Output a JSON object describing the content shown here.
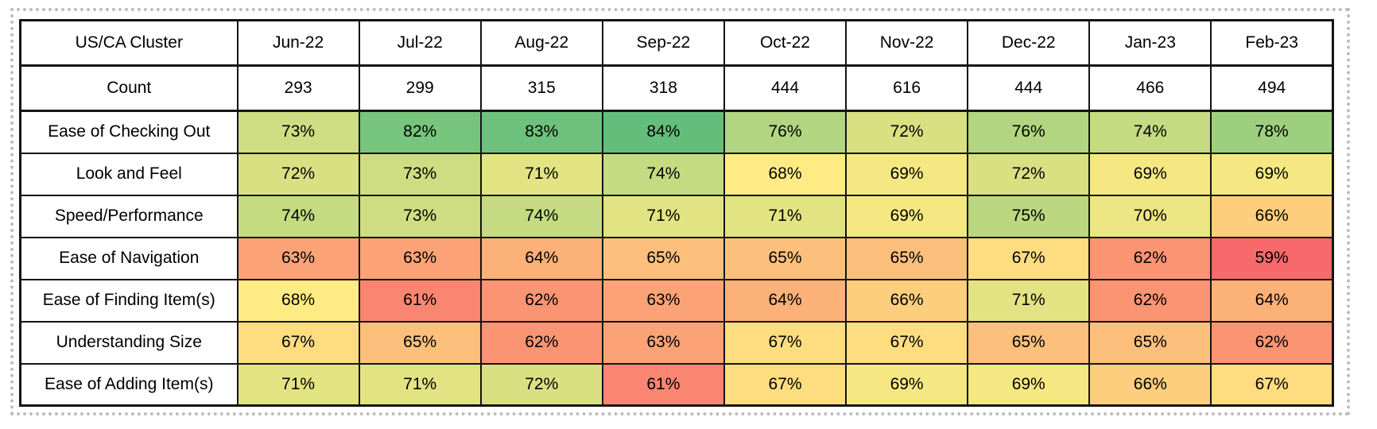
{
  "frame": {
    "border_color": "#bdbdbd",
    "background": "#ffffff"
  },
  "chart_data": {
    "type": "heatmap",
    "title": "US/CA Cluster",
    "corner_label": "US/CA Cluster",
    "columns": [
      "Jun-22",
      "Jul-22",
      "Aug-22",
      "Sep-22",
      "Oct-22",
      "Nov-22",
      "Dec-22",
      "Jan-23",
      "Feb-23"
    ],
    "count_row": {
      "label": "Count",
      "values": [
        293,
        299,
        315,
        318,
        444,
        616,
        444,
        466,
        494
      ]
    },
    "rows": [
      {
        "label": "Ease of Checking Out",
        "values": [
          73,
          82,
          83,
          84,
          76,
          72,
          76,
          74,
          78
        ]
      },
      {
        "label": "Look and Feel",
        "values": [
          72,
          73,
          71,
          74,
          68,
          69,
          72,
          69,
          69
        ]
      },
      {
        "label": "Speed/Performance",
        "values": [
          74,
          73,
          74,
          71,
          71,
          69,
          75,
          70,
          66
        ]
      },
      {
        "label": "Ease of Navigation",
        "values": [
          63,
          63,
          64,
          65,
          65,
          65,
          67,
          62,
          59
        ]
      },
      {
        "label": "Ease of Finding Item(s)",
        "values": [
          68,
          61,
          62,
          63,
          64,
          66,
          71,
          62,
          64
        ]
      },
      {
        "label": "Understanding Size",
        "values": [
          67,
          65,
          62,
          63,
          67,
          67,
          65,
          65,
          62
        ]
      },
      {
        "label": "Ease of Adding Item(s)",
        "values": [
          71,
          71,
          72,
          61,
          67,
          69,
          69,
          66,
          67
        ]
      }
    ],
    "value_suffix": "%",
    "color_scale": {
      "min_value": 59,
      "min_color": "#F8696B",
      "mid_value": 68,
      "mid_color": "#FFEB84",
      "max_value": 84,
      "max_color": "#63BE7B"
    },
    "grid": true,
    "legend": false
  }
}
